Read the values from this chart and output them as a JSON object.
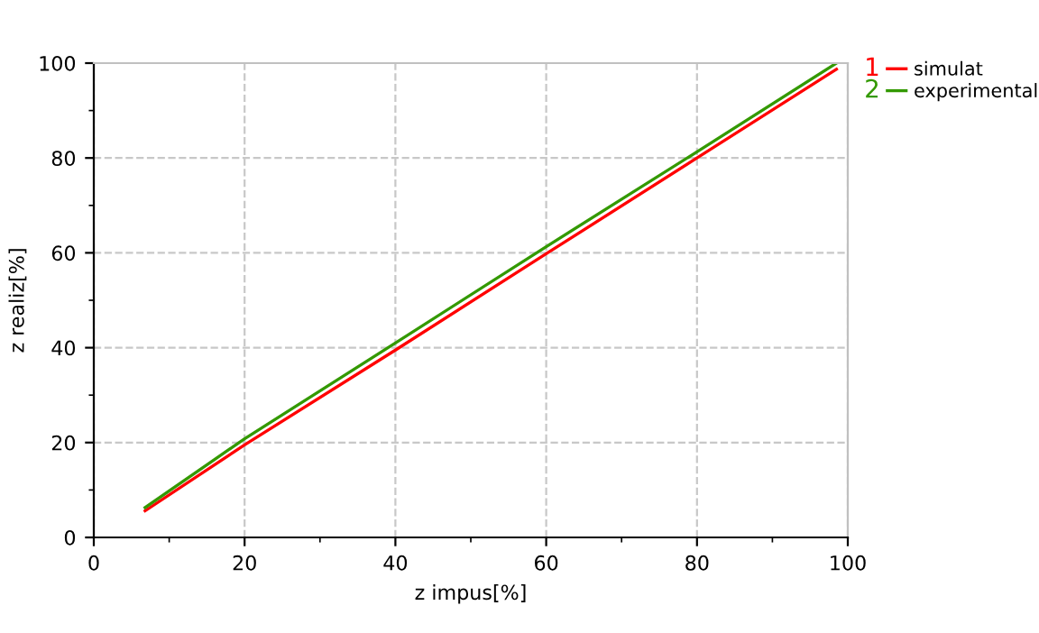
{
  "chart_data": {
    "type": "line",
    "xlabel": "z impus[%]",
    "ylabel": "z realiz[%]",
    "series": [
      {
        "name": "simulat",
        "color": "#ff0000",
        "x": [
          6.8,
          20,
          40,
          60,
          80,
          98.5
        ],
        "values": [
          5.6,
          19.5,
          39.5,
          59.8,
          80,
          98.7
        ]
      },
      {
        "name": "experimental",
        "color": "#339900",
        "x": [
          6.8,
          20,
          40,
          60,
          80,
          98.5
        ],
        "values": [
          6.3,
          20.8,
          41,
          61.3,
          81.3,
          100
        ]
      }
    ],
    "annotations": [
      "1",
      "2"
    ],
    "xlim": [
      0,
      100
    ],
    "ylim": [
      0,
      100
    ],
    "xticks": [
      0,
      {
        "value": 10,
        "label": null
      },
      20,
      {
        "value": 30,
        "label": null
      },
      40,
      {
        "value": 50,
        "label": null
      },
      60,
      {
        "value": 70,
        "label": null
      },
      80,
      {
        "value": 90,
        "label": null
      },
      100
    ],
    "yticks": [
      0,
      {
        "value": 10,
        "label": null
      },
      20,
      {
        "value": 30,
        "label": null
      },
      40,
      {
        "value": 50,
        "label": null
      },
      60,
      {
        "value": 70,
        "label": null
      },
      80,
      {
        "value": 90,
        "label": null
      },
      100
    ],
    "grid": true,
    "legend": "right",
    "marker": "none",
    "line_style": "solid"
  }
}
